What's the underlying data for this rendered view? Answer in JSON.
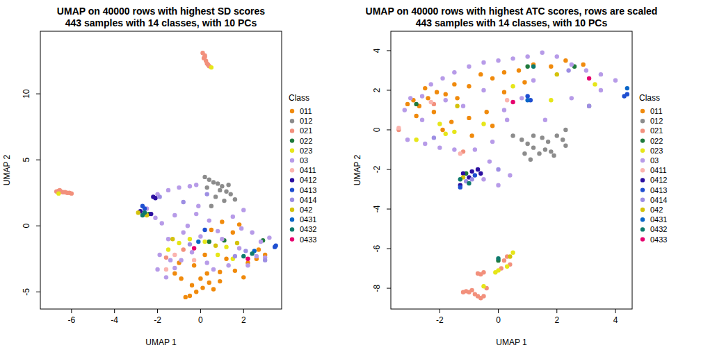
{
  "chart_data": [
    {
      "type": "scatter",
      "title": "UMAP on 40000 rows with highest SD scores",
      "subtitle": "443 samples with 14 classes, with 10 PCs",
      "x_label": "UMAP 1",
      "y_label": "UMAP 2",
      "legend_title": "Class",
      "legend": "right",
      "marker": "circle",
      "xlim": [
        -7.45,
        3.77
      ],
      "ylim": [
        -6.3,
        14.74
      ],
      "xticks": [
        -6,
        -4,
        -2,
        0,
        2
      ],
      "yticks": [
        -5,
        0,
        5,
        10
      ],
      "series": [
        {
          "name": "011",
          "color": "#f08a0c",
          "x": [
            -0.7,
            -0.5,
            -0.2,
            0.1,
            0.4,
            0.6,
            0.9,
            -0.4,
            -0.9,
            -1.2,
            0.3,
            0.9,
            1.2,
            1.6,
            2.0,
            2.2,
            2.6,
            3.0,
            1.5,
            1.0,
            0.5,
            1.8,
            0.2,
            -0.3,
            2.7,
            -1.0,
            0.0
          ],
          "values": [
            -5.4,
            -5.3,
            -5.0,
            -4.7,
            -4.3,
            -4.8,
            -4.2,
            -4.5,
            -4.0,
            -3.6,
            -3.6,
            -3.5,
            -2.5,
            -3.4,
            -3.9,
            -2.8,
            -2.5,
            -2.2,
            -0.5,
            0.3,
            -0.3,
            0.1,
            -2.2,
            -3.0,
            -1.8,
            -2.8,
            -4.0
          ]
        },
        {
          "name": "012",
          "color": "#8c8c8c",
          "x": [
            0.2,
            0.4,
            0.6,
            0.8,
            1.0,
            0.9,
            1.2,
            1.4,
            0.7,
            1.1,
            0.3,
            1.3,
            0.5,
            1.6
          ],
          "values": [
            3.7,
            3.5,
            3.3,
            3.2,
            3.0,
            2.7,
            2.6,
            2.4,
            2.2,
            1.9,
            2.9,
            3.1,
            1.5,
            2.0
          ]
        },
        {
          "name": "021",
          "color": "#f2907c",
          "x": [
            0.1,
            0.2,
            0.15,
            0.25,
            0.3,
            0.35,
            0.4,
            0.2,
            -6.7,
            -6.6,
            -6.5,
            -6.4,
            -6.3,
            -6.2,
            -6.1,
            -6.0,
            -6.55,
            -1.6,
            -0.8
          ],
          "values": [
            13.1,
            12.9,
            12.7,
            12.5,
            12.3,
            12.2,
            12.1,
            12.8,
            2.6,
            2.65,
            2.6,
            2.55,
            2.55,
            2.5,
            2.5,
            2.45,
            2.7,
            -2.4,
            -1.8
          ]
        },
        {
          "name": "022",
          "color": "#1f7a3c",
          "x": [
            -2.4,
            0.4,
            2.9,
            1.1
          ],
          "values": [
            0.9,
            -1.2,
            -1.1,
            -1.1
          ]
        },
        {
          "name": "023",
          "color": "#e6e619",
          "x": [
            0.5,
            -6.6,
            -1.0,
            -0.5,
            0.2,
            0.8,
            1.2,
            -1.5,
            1.5
          ],
          "values": [
            12.0,
            2.45,
            -1.3,
            -1.0,
            -1.2,
            -2.2,
            -1.6,
            -1.8,
            -2.5
          ]
        },
        {
          "name": "03",
          "color": "#b79be8",
          "x": [
            -2.0,
            -1.5,
            -1.0,
            -0.5,
            -0.2,
            -2.5,
            -2.1,
            -1.8,
            -1.2,
            -0.6,
            -0.1,
            0.4,
            0.8,
            1.5,
            2.0,
            2.4,
            2.8,
            3.0,
            2.6,
            2.2,
            1.8,
            1.0,
            0.0,
            -0.8,
            -1.5,
            -1.9,
            -2.0,
            -1.6,
            -1.2,
            -0.9,
            -0.4,
            0.3,
            0.6,
            1.3,
            -1.4,
            -0.2,
            1.9,
            3.2
          ],
          "values": [
            2.4,
            2.7,
            2.9,
            3.0,
            3.1,
            1.3,
            0.6,
            0.2,
            0.8,
            0.0,
            1.5,
            0.4,
            -0.4,
            0.7,
            1.2,
            -0.5,
            -1.2,
            -2.4,
            -2.3,
            -3.0,
            -1.7,
            -1.0,
            -0.8,
            -0.5,
            -1.0,
            -2.2,
            -3.3,
            -3.9,
            -3.2,
            -2.6,
            -2.0,
            -2.8,
            -3.3,
            -3.0,
            -2.6,
            0.9,
            -0.2,
            -0.9
          ]
        },
        {
          "name": "0411",
          "color": "#fbb4ae",
          "x": [
            -1.2,
            -1.6,
            -0.3
          ],
          "values": [
            -2.2,
            -3.3,
            -2.6
          ]
        },
        {
          "name": "0412",
          "color": "#2b0fa0",
          "x": [
            -2.2,
            -2.1,
            -2.6,
            -2.8,
            -2.3
          ],
          "values": [
            2.2,
            2.1,
            0.9,
            1.1,
            0.9
          ]
        },
        {
          "name": "0413",
          "color": "#1f4fd1",
          "x": [
            -2.7,
            -2.6,
            0.2,
            3.5,
            3.45
          ],
          "values": [
            1.5,
            1.3,
            -0.3,
            -1.5,
            -1.6
          ]
        },
        {
          "name": "0414",
          "color": "#9d8ee3",
          "x": [
            -1.9,
            -0.8,
            0.3,
            1.6,
            -0.5,
            2.1,
            3.0
          ],
          "values": [
            2.2,
            1.8,
            2.4,
            -2.3,
            -1.4,
            -1.9,
            -2.6
          ]
        },
        {
          "name": "042",
          "color": "#d4c20a",
          "x": [
            -2.9,
            -2.5,
            -1.3,
            0.7,
            1.7
          ],
          "values": [
            1.0,
            0.8,
            -1.0,
            -1.5,
            -1.3
          ]
        },
        {
          "name": "0431",
          "color": "#0a66c8",
          "x": [
            -0.1,
            2.5
          ],
          "values": [
            -1.2,
            -1.9
          ]
        },
        {
          "name": "0432",
          "color": "#0e7a6c",
          "x": [
            -2.6,
            2.4,
            2.0,
            -2.7
          ],
          "values": [
            1.0,
            -2.1,
            -2.3,
            0.8
          ]
        },
        {
          "name": "0433",
          "color": "#e6006e",
          "x": [
            -0.3,
            2.2
          ],
          "values": [
            -1.7,
            -2.5
          ]
        }
      ]
    },
    {
      "type": "scatter",
      "title": "UMAP on 40000 rows with highest ATC scores, rows are scaled",
      "subtitle": "443 samples with 14 classes, with 10 PCs",
      "x_label": "UMAP 1",
      "y_label": "UMAP 2",
      "legend_title": "Class",
      "legend": "right",
      "marker": "circle",
      "xlim": [
        -3.67,
        4.57
      ],
      "ylim": [
        -9.05,
        4.98
      ],
      "xticks": [
        -2,
        0,
        2,
        4
      ],
      "yticks": [
        -8,
        -6,
        -4,
        -2,
        0,
        2,
        4
      ],
      "series": [
        {
          "name": "011",
          "color": "#f08a0c",
          "x": [
            -3.1,
            -2.9,
            -2.7,
            -2.4,
            -2.1,
            -1.8,
            -1.4,
            -1.0,
            -0.6,
            -0.2,
            0.2,
            0.7,
            1.2,
            1.8,
            2.3,
            2.9,
            -2.8,
            -2.2,
            -1.6,
            -1.0,
            -0.4,
            0.2,
            -1.9,
            -0.9,
            -2.5,
            0.9,
            -1.5,
            -0.2
          ],
          "values": [
            1.3,
            1.5,
            1.2,
            1.6,
            1.9,
            1.8,
            1.6,
            2.2,
            2.8,
            2.6,
            2.9,
            3.0,
            3.3,
            3.2,
            3.5,
            3.3,
            0.7,
            0.9,
            0.4,
            0.6,
            0.9,
            1.9,
            0.0,
            -0.3,
            2.1,
            2.4,
            2.3,
            0.2
          ]
        },
        {
          "name": "012",
          "color": "#8c8c8c",
          "x": [
            0.5,
            0.8,
            1.0,
            1.2,
            1.4,
            1.6,
            1.8,
            1.7,
            2.0,
            2.2,
            2.3,
            1.2,
            0.9,
            1.5,
            1.9,
            3.1,
            2.3,
            1.1
          ],
          "values": [
            -0.3,
            -0.5,
            -0.7,
            -0.9,
            -1.2,
            -1.0,
            -1.1,
            -0.6,
            -0.3,
            -0.5,
            -0.8,
            -0.3,
            -1.2,
            -0.4,
            -1.3,
            1.2,
            0.0,
            -1.5
          ]
        },
        {
          "name": "021",
          "color": "#f2907c",
          "x": [
            -1.2,
            -1.0,
            -0.8,
            -0.7,
            -0.6,
            -0.5,
            -0.9,
            -1.1,
            -0.4,
            -0.6,
            -0.5,
            -0.7,
            0.2,
            0.4,
            0.1,
            0.3,
            -1.2,
            -2.2,
            -3.4
          ],
          "values": [
            -8.2,
            -8.2,
            -8.3,
            -8.4,
            -8.5,
            -8.4,
            -8.1,
            -8.15,
            -8.0,
            -7.3,
            -7.2,
            -7.25,
            -6.6,
            -6.8,
            -7.0,
            -6.4,
            -1.1,
            1.3,
            0.0
          ]
        },
        {
          "name": "022",
          "color": "#1f7a3c",
          "x": [
            0.0,
            -1.1,
            1.0,
            -2.8,
            2.6
          ],
          "values": [
            -6.6,
            -2.2,
            3.2,
            1.3,
            3.2
          ]
        },
        {
          "name": "023",
          "color": "#e6e619",
          "x": [
            0.5,
            0.3,
            0.0,
            -0.1,
            -0.5,
            -2.8,
            -1.5,
            -0.5,
            0.5,
            1.8,
            -2.0,
            3.3,
            -1.8
          ],
          "values": [
            -6.2,
            -6.9,
            -7.1,
            -7.2,
            -7.9,
            -0.5,
            -0.1,
            0.3,
            2.2,
            1.5,
            0.3,
            2.3,
            -0.2
          ]
        },
        {
          "name": "03",
          "color": "#b79be8",
          "x": [
            -3.2,
            -3.0,
            -2.6,
            -2.3,
            -1.9,
            -1.5,
            -1.0,
            -0.5,
            0.0,
            0.5,
            1.0,
            1.5,
            2.0,
            2.5,
            3.0,
            3.5,
            4.0,
            -3.1,
            -2.5,
            -2.0,
            -1.5,
            -0.8,
            -0.2,
            0.3,
            -1.2,
            -0.5,
            0.8,
            1.2,
            2.5,
            1.6,
            -0.5,
            0.0,
            0.4,
            -0.3,
            -2.6,
            -1.8,
            3.5,
            0.2
          ],
          "values": [
            1.0,
            1.6,
            1.7,
            2.3,
            2.6,
            2.9,
            3.2,
            3.4,
            3.5,
            3.6,
            3.7,
            3.9,
            3.7,
            3.3,
            3.0,
            2.8,
            2.5,
            -0.5,
            -0.7,
            -0.9,
            -1.0,
            -1.0,
            -0.6,
            0.5,
            1.2,
            2.0,
            1.6,
            2.5,
            1.6,
            0.5,
            -2.5,
            -2.8,
            -2.3,
            -1.6,
            0.5,
            1.5,
            2.0,
            1.0
          ]
        },
        {
          "name": "0411",
          "color": "#fbb4ae",
          "x": [
            -3.4,
            -1.3,
            -2.3,
            0.3
          ],
          "values": [
            0.1,
            -1.2,
            1.4,
            1.5
          ]
        },
        {
          "name": "0412",
          "color": "#2b0fa0",
          "x": [
            -1.2,
            -1.0,
            -0.9,
            -0.7,
            -1.3,
            -0.6
          ],
          "values": [
            -2.2,
            -2.4,
            -2.1,
            -2.0,
            -2.8,
            -2.2
          ]
        },
        {
          "name": "0413",
          "color": "#1f4fd1",
          "x": [
            -1.3,
            1.0,
            1.1,
            4.3,
            4.4,
            -0.8
          ],
          "values": [
            -2.9,
            1.7,
            1.5,
            1.7,
            1.8,
            -2.3
          ]
        },
        {
          "name": "0414",
          "color": "#9d8ee3",
          "x": [
            -1.1,
            -0.9,
            3.1,
            0.0,
            2.4,
            -2.2
          ],
          "values": [
            -2.6,
            -2.5,
            1.2,
            -2.0,
            3.0,
            -0.4
          ]
        },
        {
          "name": "042",
          "color": "#d4c20a",
          "x": [
            -1.2,
            0.4,
            -1.4,
            2.0
          ],
          "values": [
            -2.4,
            -6.4,
            1.2,
            2.8
          ]
        },
        {
          "name": "0431",
          "color": "#0a66c8",
          "x": [
            1.0,
            4.4
          ],
          "values": [
            1.5,
            2.1
          ]
        },
        {
          "name": "0432",
          "color": "#0e7a6c",
          "x": [
            -1.3,
            -1.0,
            0.0,
            1.2
          ],
          "values": [
            -2.5,
            -2.7,
            -6.5,
            3.2
          ]
        },
        {
          "name": "0433",
          "color": "#e6006e",
          "x": [
            0.5,
            3.1
          ],
          "values": [
            1.4,
            2.6
          ]
        }
      ]
    }
  ]
}
